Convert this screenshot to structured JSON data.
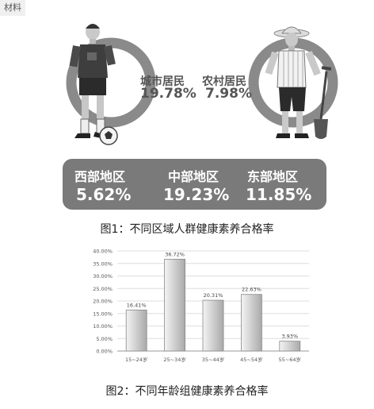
{
  "tag_label": "材料",
  "figure1": {
    "caption": "图1：不同区域人群健康素养合格率",
    "urban": {
      "label": "城市居民",
      "value": "19.78%"
    },
    "rural": {
      "label": "农村居民",
      "value": "7.98%"
    },
    "regions": [
      {
        "name": "西部地区",
        "value": "5.62%"
      },
      {
        "name": "中部地区",
        "value": "19.23%"
      },
      {
        "name": "东部地区",
        "value": "11.85%"
      }
    ]
  },
  "figure2": {
    "caption": "图2：不同年龄组健康素养合格率"
  },
  "chart_data": {
    "type": "bar",
    "categories": [
      "15~24岁",
      "25~34岁",
      "35~44岁",
      "45~54岁",
      "55~64岁"
    ],
    "values": [
      16.41,
      36.72,
      20.31,
      22.63,
      3.93
    ],
    "data_labels": [
      "16.41%",
      "36.72%",
      "20.31%",
      "22.63%",
      "3.93%"
    ],
    "yticks": [
      "0.00%",
      "5.00%",
      "10.00%",
      "15.00%",
      "20.00%",
      "25.00%",
      "30.00%",
      "35.00%",
      "40.00%"
    ],
    "ylim": [
      0,
      40
    ],
    "grid": true,
    "title": "",
    "xlabel": "",
    "ylabel": ""
  },
  "colors": {
    "bar_gradient_light": "#f4f4f4",
    "bar_gradient_dark": "#a9a9a9",
    "ring": "#8a8a8a",
    "region_bg": "#7a7a7a"
  },
  "icons": [
    "soccer-player-illustration",
    "farmer-illustration",
    "soccer-ball-icon",
    "shovel-icon"
  ]
}
